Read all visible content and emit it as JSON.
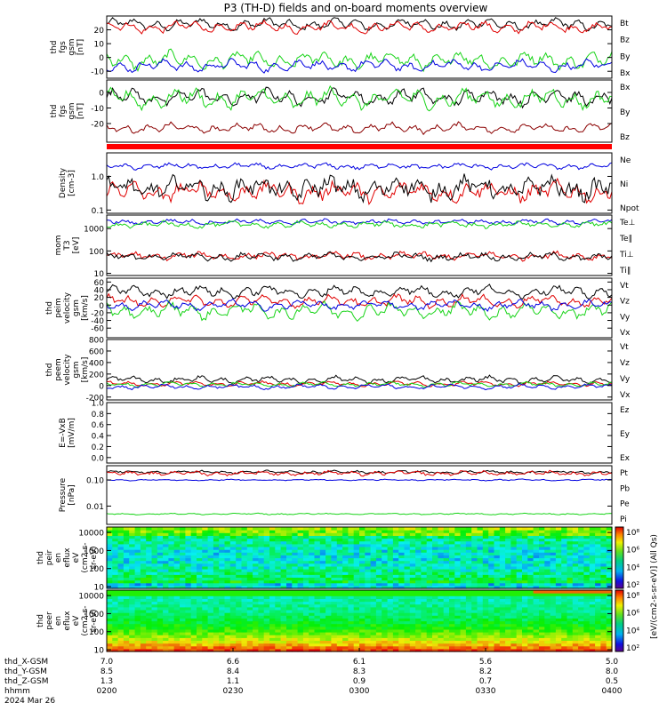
{
  "title": "P3 (TH-D) fields and on-board moments overview",
  "colors": {
    "black": "#000000",
    "red": "#e00000",
    "green": "#19d419",
    "blue": "#0000e0",
    "darkred": "#8b0000"
  },
  "chart_data": [
    {
      "type": "line",
      "id": "fgs_gsm",
      "ylabel": [
        "thd",
        "fgs",
        "gsm",
        "[nT]"
      ],
      "ylim": [
        -15,
        30
      ],
      "yticks": [
        "20",
        "10",
        "0",
        "-10"
      ],
      "ytick_values": [
        20,
        10,
        0,
        -10
      ],
      "series": [
        {
          "name": "Bt",
          "color": "#000000",
          "level": 24,
          "amp": 4
        },
        {
          "name": "Bz",
          "color": "#e00000",
          "level": 22,
          "amp": 4
        },
        {
          "name": "By",
          "color": "#19d419",
          "level": -2,
          "amp": 6
        },
        {
          "name": "Bx",
          "color": "#0000e0",
          "level": -6,
          "amp": 4
        }
      ]
    },
    {
      "type": "line",
      "id": "fgs_gsm_2",
      "ylabel": [
        "thd",
        "fgs",
        "gsm",
        "[nT]"
      ],
      "ylim": [
        -32,
        8
      ],
      "yticks": [
        "0",
        "-10",
        "-20"
      ],
      "ytick_values": [
        0,
        -10,
        -20
      ],
      "series": [
        {
          "name": "Bx",
          "color": "#000000",
          "level": -3,
          "amp": 5
        },
        {
          "name": "By",
          "color": "#19d419",
          "level": -4,
          "amp": 6
        },
        {
          "name": "Bz",
          "color": "#8b0000",
          "level": -23,
          "amp": 3
        }
      ]
    },
    {
      "type": "line",
      "id": "density",
      "scale": "log",
      "ylabel": [
        "Density",
        "[cm-3]"
      ],
      "ylim": [
        0.08,
        5
      ],
      "yticks": [
        "1.0",
        "0.1"
      ],
      "ytick_values": [
        1.0,
        0.1
      ],
      "series": [
        {
          "name": "Ne",
          "color": "#e00000",
          "level": 0.35,
          "amp": 0.5
        },
        {
          "name": "Ni",
          "color": "#000000",
          "level": 0.45,
          "amp": 0.6
        },
        {
          "name": "Npot",
          "color": "#0000e0",
          "level": 2.0,
          "amp": 0.15
        }
      ]
    },
    {
      "type": "line",
      "id": "temperature",
      "scale": "log",
      "ylabel": [
        "mom",
        "T3",
        "[eV]"
      ],
      "ylim": [
        8,
        4000
      ],
      "yticks": [
        "1000",
        "100",
        "10"
      ],
      "ytick_values": [
        1000,
        100,
        10
      ],
      "series": [
        {
          "name": "Te⊥",
          "color": "#e00000",
          "level": 60,
          "amp": 0.3
        },
        {
          "name": "Te∥",
          "color": "#000000",
          "level": 55,
          "amp": 0.3
        },
        {
          "name": "Ti⊥",
          "color": "#0000e0",
          "level": 2000,
          "amp": 0.2
        },
        {
          "name": "Ti∥",
          "color": "#19d419",
          "level": 1500,
          "amp": 0.25
        }
      ]
    },
    {
      "type": "line",
      "id": "peim_velocity",
      "ylabel": [
        "thd",
        "peim",
        "velocity",
        "gsm",
        "[km/s]"
      ],
      "ylim": [
        -85,
        70
      ],
      "yticks": [
        "60",
        "40",
        "20",
        "0",
        "-20",
        "-40",
        "-60"
      ],
      "ytick_values": [
        60,
        40,
        20,
        0,
        -20,
        -40,
        -60
      ],
      "series": [
        {
          "name": "Vt",
          "color": "#000000",
          "level": 35,
          "amp": 15
        },
        {
          "name": "Vz",
          "color": "#e00000",
          "level": 10,
          "amp": 15
        },
        {
          "name": "Vy",
          "color": "#19d419",
          "level": -15,
          "amp": 20
        },
        {
          "name": "Vx",
          "color": "#0000e0",
          "level": 0,
          "amp": 12
        }
      ]
    },
    {
      "type": "line",
      "id": "peem_velocity",
      "ylabel": [
        "thd",
        "peem",
        "velocity",
        "gsm",
        "[km/s]"
      ],
      "ylim": [
        -250,
        800
      ],
      "yticks": [
        "800",
        "600",
        "400",
        "200",
        "0",
        "-200"
      ],
      "ytick_values": [
        800,
        600,
        400,
        200,
        0,
        -200
      ],
      "series": [
        {
          "name": "Vt",
          "color": "#000000",
          "level": 100,
          "amp": 60
        },
        {
          "name": "Vz",
          "color": "#e00000",
          "level": 30,
          "amp": 40
        },
        {
          "name": "Vy",
          "color": "#19d419",
          "level": 20,
          "amp": 40
        },
        {
          "name": "Vx",
          "color": "#0000e0",
          "level": -20,
          "amp": 40
        }
      ]
    },
    {
      "type": "line",
      "id": "efield",
      "ylabel": [
        "E=-VxB",
        "[mV/m]"
      ],
      "ylim": [
        -0.1,
        1.0
      ],
      "yticks": [
        "1.0",
        "0.8",
        "0.6",
        "0.4",
        "0.2",
        "0.0"
      ],
      "ytick_values": [
        1.0,
        0.8,
        0.6,
        0.4,
        0.2,
        0.0
      ],
      "series": [
        {
          "name": "Ez",
          "color": "#e00000"
        },
        {
          "name": "Ey",
          "color": "#19d419"
        },
        {
          "name": "Ex",
          "color": "#0000e0"
        }
      ]
    },
    {
      "type": "line",
      "id": "pressure",
      "scale": "log",
      "ylabel": [
        "Pressure",
        "[nPa]"
      ],
      "ylim": [
        0.002,
        0.35
      ],
      "yticks": [
        "0.10",
        "0.01"
      ],
      "ytick_values": [
        0.1,
        0.01
      ],
      "series": [
        {
          "name": "Pt",
          "color": "#000000",
          "level": 0.2,
          "amp": 0.1
        },
        {
          "name": "Pb",
          "color": "#e00000",
          "level": 0.18,
          "amp": 0.15
        },
        {
          "name": "Pe",
          "color": "#19d419",
          "level": 0.005,
          "amp": 0.05
        },
        {
          "name": "Pi",
          "color": "#0000e0",
          "level": 0.1,
          "amp": 0.05
        }
      ]
    },
    {
      "type": "heatmap",
      "id": "peir_en_eflux",
      "scale": "log",
      "ylabel": [
        "thd",
        "peir",
        "en",
        "eflux",
        "eV",
        "(cm2-s-",
        "sr-eV)"
      ],
      "ylim": [
        8,
        20000
      ],
      "yticks": [
        "10000",
        "1000",
        "100",
        "10"
      ],
      "ytick_values": [
        10000,
        1000,
        100,
        10
      ]
    },
    {
      "type": "heatmap",
      "id": "peer_en_eflux",
      "scale": "log",
      "ylabel": [
        "thd",
        "peer",
        "en",
        "eflux",
        "eV",
        "(cm2-s-",
        "sr-eV)"
      ],
      "ylim": [
        8,
        20000
      ],
      "yticks": [
        "10000",
        "1000",
        "100",
        "10"
      ],
      "ytick_values": [
        10000,
        1000,
        100,
        10
      ]
    }
  ],
  "colorbar": {
    "label": "[eV/(cm2-s-sr-eV)] (All Qs)",
    "ticks": [
      "10⁸",
      "10⁶",
      "10⁴",
      "10²"
    ]
  },
  "xaxis": {
    "rows": [
      {
        "label": "thd_X-GSM",
        "values": [
          "7.0",
          "6.6",
          "6.1",
          "5.6",
          "5.0"
        ]
      },
      {
        "label": "thd_Y-GSM",
        "values": [
          "8.5",
          "8.4",
          "8.3",
          "8.2",
          "8.0"
        ]
      },
      {
        "label": "thd_Z-GSM",
        "values": [
          "1.3",
          "1.1",
          "0.9",
          "0.7",
          "0.5"
        ]
      },
      {
        "label": "hhmm",
        "values": [
          "0200",
          "0230",
          "0300",
          "0330",
          "0400"
        ]
      }
    ],
    "date": "2024 Mar 26"
  }
}
